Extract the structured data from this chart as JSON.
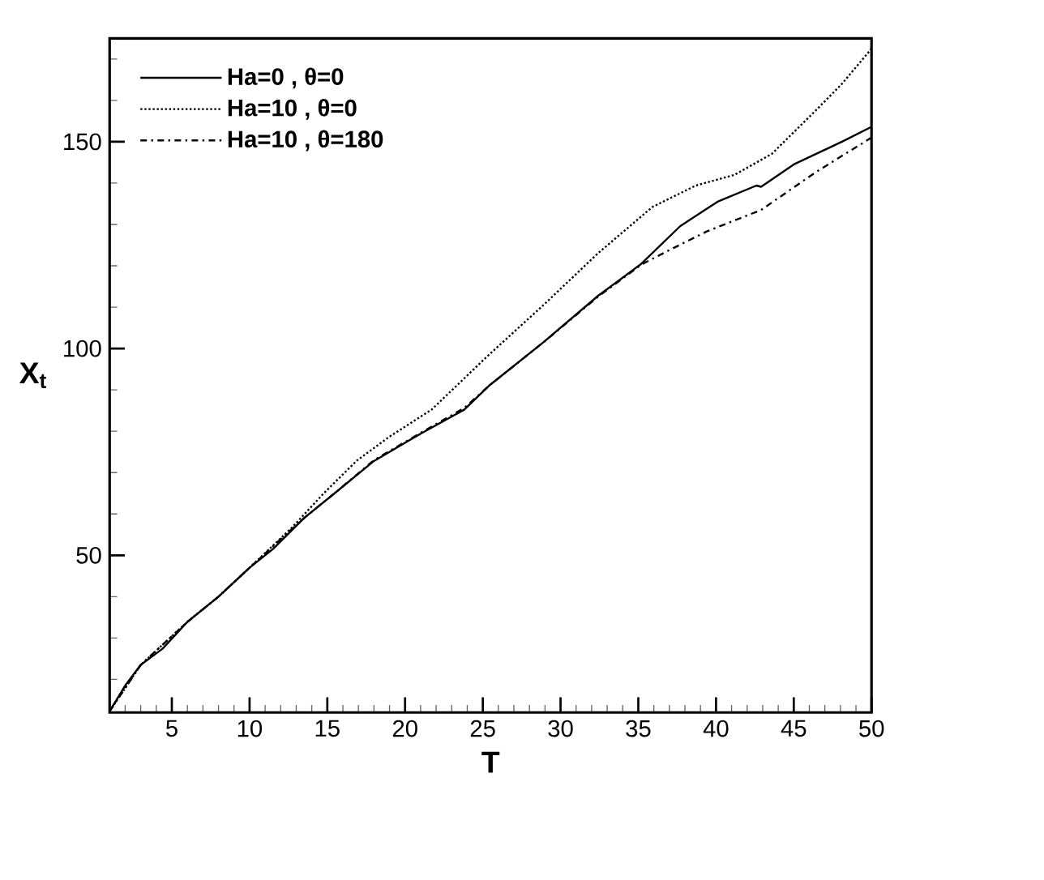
{
  "chart_data": {
    "type": "line",
    "xlabel": "T",
    "ylabel": "X$_{t}$",
    "xlim": [
      1,
      50
    ],
    "ylim": [
      12,
      175
    ],
    "xticks": [
      5,
      10,
      15,
      20,
      25,
      30,
      35,
      40,
      45,
      50,
      {
        "value": 2,
        "label": null
      },
      {
        "value": 3,
        "label": null
      },
      {
        "value": 4,
        "label": null
      },
      {
        "value": 6,
        "label": null
      },
      {
        "value": 7,
        "label": null
      },
      {
        "value": 8,
        "label": null
      },
      {
        "value": 9,
        "label": null
      },
      {
        "value": 11,
        "label": null
      },
      {
        "value": 12,
        "label": null
      },
      {
        "value": 13,
        "label": null
      },
      {
        "value": 14,
        "label": null
      },
      {
        "value": 16,
        "label": null
      },
      {
        "value": 17,
        "label": null
      },
      {
        "value": 18,
        "label": null
      },
      {
        "value": 19,
        "label": null
      },
      {
        "value": 21,
        "label": null
      },
      {
        "value": 22,
        "label": null
      },
      {
        "value": 23,
        "label": null
      },
      {
        "value": 24,
        "label": null
      },
      {
        "value": 26,
        "label": null
      },
      {
        "value": 27,
        "label": null
      },
      {
        "value": 28,
        "label": null
      },
      {
        "value": 29,
        "label": null
      },
      {
        "value": 31,
        "label": null
      },
      {
        "value": 32,
        "label": null
      },
      {
        "value": 33,
        "label": null
      },
      {
        "value": 34,
        "label": null
      },
      {
        "value": 36,
        "label": null
      },
      {
        "value": 37,
        "label": null
      },
      {
        "value": 38,
        "label": null
      },
      {
        "value": 39,
        "label": null
      },
      {
        "value": 41,
        "label": null
      },
      {
        "value": 42,
        "label": null
      },
      {
        "value": 43,
        "label": null
      },
      {
        "value": 44,
        "label": null
      },
      {
        "value": 46,
        "label": null
      },
      {
        "value": 47,
        "label": null
      },
      {
        "value": 48,
        "label": null
      },
      {
        "value": 49,
        "label": null
      }
    ],
    "yticks": [
      50,
      100,
      150,
      {
        "value": 20,
        "label": null
      },
      {
        "value": 30,
        "label": null
      },
      {
        "value": 40,
        "label": null
      },
      {
        "value": 60,
        "label": null
      },
      {
        "value": 70,
        "label": null
      },
      {
        "value": 80,
        "label": null
      },
      {
        "value": 90,
        "label": null
      },
      {
        "value": 110,
        "label": null
      },
      {
        "value": 120,
        "label": null
      },
      {
        "value": 130,
        "label": null
      },
      {
        "value": 140,
        "label": null
      },
      {
        "value": 160,
        "label": null
      },
      {
        "value": 170,
        "label": null
      }
    ],
    "legend": "top left",
    "series": [
      {
        "name": "Ha=0 , θ=0",
        "color": "#000000",
        "line_style": "solid",
        "x": [
          1,
          2,
          3,
          4.4,
          6,
          8,
          10,
          11.5,
          13.5,
          15.5,
          18,
          21,
          23.8,
          25.4,
          28.9,
          32.4,
          35.2,
          37.7,
          40.1,
          42.6,
          42.9,
          45,
          48.1,
          50
        ],
        "values": [
          12.3,
          18.5,
          23.5,
          27.4,
          33.9,
          40,
          47,
          51.5,
          59,
          65.1,
          72.8,
          79.4,
          85.2,
          91,
          101.5,
          112.7,
          120.5,
          129.6,
          135.5,
          139.4,
          139.1,
          144.5,
          150,
          153.6
        ]
      },
      {
        "name": "Ha=10 , θ=0",
        "color": "#000000",
        "line_style": "dotted",
        "x": [
          1,
          3,
          6,
          8,
          10,
          12.7,
          14.8,
          16.9,
          19,
          21.7,
          25.4,
          28.9,
          32.4,
          35.9,
          38.7,
          41.2,
          43.6,
          46.4,
          48.1,
          50
        ],
        "values": [
          12.3,
          23.5,
          33.9,
          40,
          47,
          56.6,
          65.1,
          72.9,
          78.7,
          85.2,
          98.5,
          110.5,
          123,
          134.2,
          139.4,
          142,
          147.1,
          157.5,
          164,
          172.5
        ]
      },
      {
        "name": "Ha=10 , θ=180",
        "color": "#000000",
        "line_style": "dashdot",
        "x": [
          1,
          3,
          6,
          8,
          10,
          13.5,
          15.5,
          18,
          21,
          23.8,
          25.4,
          28.9,
          32.4,
          35.2,
          37,
          39.4,
          42.9,
          46.4,
          50
        ],
        "values": [
          12.3,
          23.5,
          33.9,
          40,
          47,
          59,
          65.1,
          73,
          79.6,
          85.6,
          91,
          101.5,
          112.5,
          120.3,
          123.8,
          128.3,
          133.5,
          142.6,
          151
        ]
      }
    ]
  }
}
